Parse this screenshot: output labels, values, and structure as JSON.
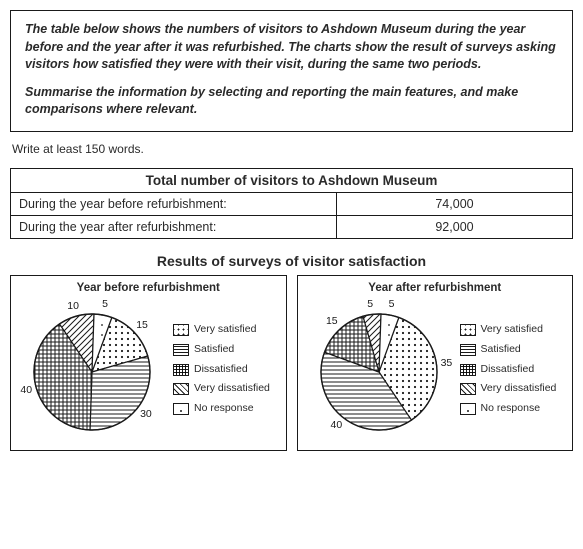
{
  "prompt": {
    "p1": "The table below shows the numbers of visitors to Ashdown Museum during the year before and the year after it was refurbished. The charts show the result of surveys asking visitors how satisfied they were with their visit, during the same two periods.",
    "p2": "Summarise the information by selecting and reporting the main features, and make comparisons where relevant."
  },
  "instruction": "Write at least 150 words.",
  "table": {
    "title": "Total number of visitors to Ashdown Museum",
    "rows": [
      {
        "label": "During the year before refurbishment:",
        "value": "74,000"
      },
      {
        "label": "During the year after refurbishment:",
        "value": "92,000"
      }
    ]
  },
  "charts": {
    "title": "Results of surveys of visitor satisfaction",
    "legend": [
      "Very satisfied",
      "Satisfied",
      "Dissatisfied",
      "Very dissatisfied",
      "No response"
    ],
    "before": {
      "title": "Year before refurbishment",
      "slices": [
        {
          "label": "15",
          "value": 15,
          "pattern": "dots"
        },
        {
          "label": "30",
          "value": 30,
          "pattern": "hstripe"
        },
        {
          "label": "40",
          "value": 40,
          "pattern": "cross"
        },
        {
          "label": "10",
          "value": 10,
          "pattern": "diag"
        },
        {
          "label": "5",
          "value": 5,
          "pattern": "sparse"
        }
      ]
    },
    "after": {
      "title": "Year after refurbishment",
      "slices": [
        {
          "label": "35",
          "value": 35,
          "pattern": "dots"
        },
        {
          "label": "40",
          "value": 40,
          "pattern": "hstripe"
        },
        {
          "label": "15",
          "value": 15,
          "pattern": "cross"
        },
        {
          "label": "5",
          "value": 5,
          "pattern": "diag"
        },
        {
          "label": "5",
          "value": 5,
          "pattern": "sparse"
        }
      ]
    },
    "style": {
      "radius": 58,
      "stroke": "#1a1a1a",
      "label_radius_factor": 1.18,
      "start_angle_deg": -70
    }
  }
}
